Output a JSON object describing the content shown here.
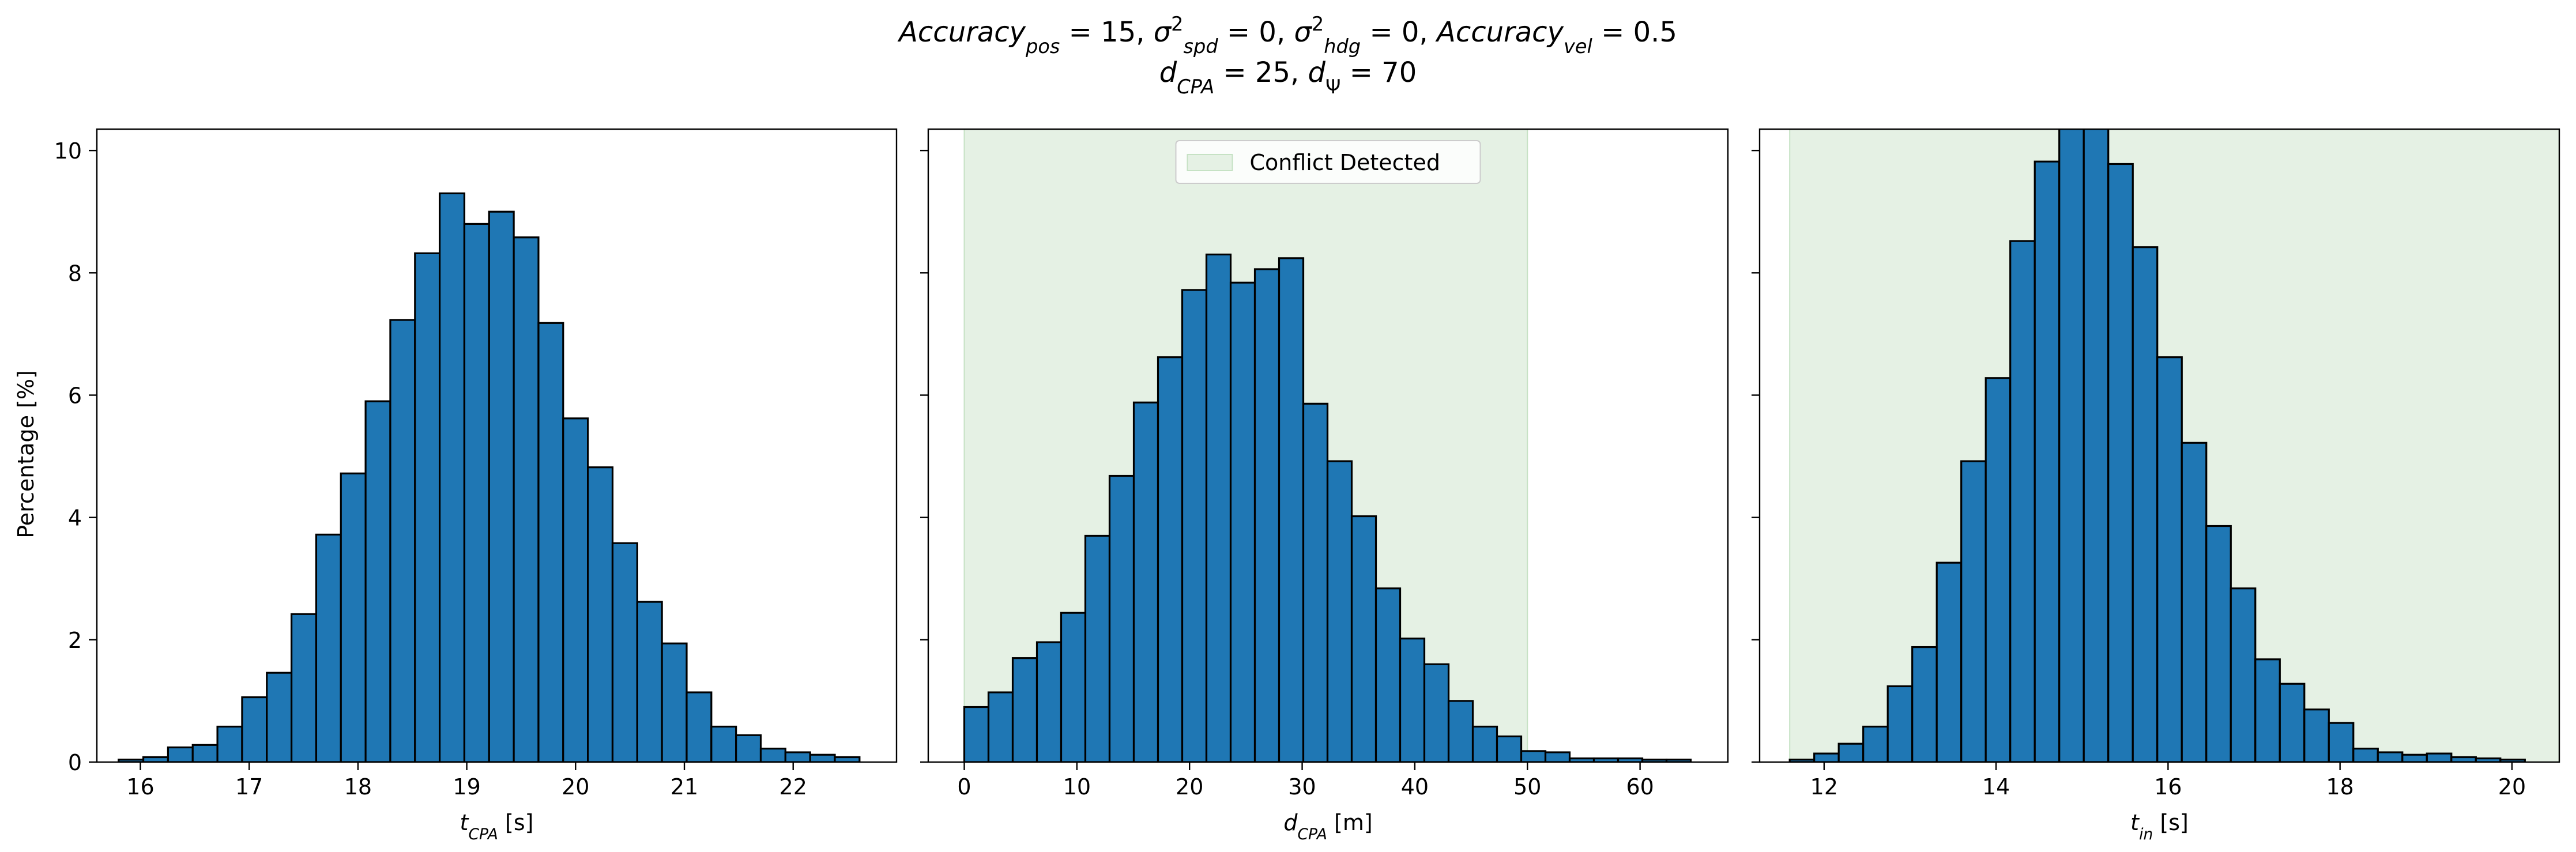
{
  "title": {
    "line1": [
      {
        "t": "Accuracy",
        "i": true
      },
      {
        "t": "pos",
        "i": true,
        "s": "sub"
      },
      {
        "t": " = 15, "
      },
      {
        "t": "σ",
        "i": true
      },
      {
        "t": "2",
        "s": "sup"
      },
      {
        "t": "spd",
        "i": true,
        "s": "sub"
      },
      {
        "t": " = 0, "
      },
      {
        "t": "σ",
        "i": true
      },
      {
        "t": "2",
        "s": "sup"
      },
      {
        "t": "hdg",
        "i": true,
        "s": "sub"
      },
      {
        "t": " = 0, "
      },
      {
        "t": "Accuracy",
        "i": true
      },
      {
        "t": "vel",
        "i": true,
        "s": "sub"
      },
      {
        "t": " = 0.5"
      }
    ],
    "line2": [
      {
        "t": "d",
        "i": true
      },
      {
        "t": "CPA",
        "i": true,
        "s": "sub"
      },
      {
        "t": " = 25, "
      },
      {
        "t": "d",
        "i": true
      },
      {
        "t": "Ψ",
        "s": "sub"
      },
      {
        "t": " = 70"
      }
    ]
  },
  "colors": {
    "bar_fill": "#1f77b4",
    "bar_edge": "#000000",
    "conflict_fill": "#e5f1e4",
    "conflict_edge": "#c6e2c4"
  },
  "chart_data": [
    {
      "type": "bar",
      "title": "",
      "xlabel": [
        {
          "t": "t",
          "i": true
        },
        {
          "t": "CPA",
          "i": true,
          "s": "sub"
        },
        {
          "t": " [s]"
        }
      ],
      "ylabel": "Percentage [%]",
      "xlim": [
        15.6,
        22.95
      ],
      "ylim": [
        0,
        10.35
      ],
      "xticks": [
        16,
        17,
        18,
        19,
        20,
        21,
        22
      ],
      "yticks": [
        0,
        2,
        4,
        6,
        8,
        10
      ],
      "bin_start": 15.8,
      "bin_width": 0.227,
      "values": [
        0.04,
        0.08,
        0.24,
        0.28,
        0.58,
        1.06,
        1.46,
        2.42,
        3.72,
        4.72,
        5.9,
        7.23,
        8.32,
        9.3,
        8.8,
        9.0,
        8.58,
        7.18,
        5.62,
        4.82,
        3.58,
        2.62,
        1.94,
        1.14,
        0.58,
        0.44,
        0.22,
        0.16,
        0.12,
        0.08
      ]
    },
    {
      "type": "bar",
      "title": "",
      "xlabel": [
        {
          "t": "d",
          "i": true
        },
        {
          "t": "CPA",
          "i": true,
          "s": "sub"
        },
        {
          "t": " [m]"
        }
      ],
      "ylabel": "",
      "xlim": [
        -3.2,
        67.8
      ],
      "ylim": [
        0,
        10.35
      ],
      "xticks": [
        0,
        10,
        20,
        30,
        40,
        50,
        60
      ],
      "yticks": [
        0,
        2,
        4,
        6,
        8,
        10
      ],
      "bin_start": 0,
      "bin_width": 2.15,
      "values": [
        0.9,
        1.14,
        1.7,
        1.96,
        2.44,
        3.7,
        4.68,
        5.88,
        6.62,
        7.72,
        8.3,
        7.84,
        8.06,
        8.24,
        5.86,
        4.92,
        4.02,
        2.84,
        2.02,
        1.6,
        1.0,
        0.58,
        0.42,
        0.18,
        0.16,
        0.06,
        0.06,
        0.06,
        0.04,
        0.04
      ],
      "conflict_region": [
        0,
        50
      ],
      "legend": {
        "label": "Conflict Detected",
        "position": "upper center"
      }
    },
    {
      "type": "bar",
      "title": "",
      "xlabel": [
        {
          "t": "t",
          "i": true
        },
        {
          "t": "in",
          "i": true,
          "s": "sub"
        },
        {
          "t": " [s]"
        }
      ],
      "ylabel": "",
      "xlim": [
        11.25,
        20.55
      ],
      "ylim": [
        0,
        10.35
      ],
      "xticks": [
        12,
        14,
        16,
        18,
        20
      ],
      "yticks": [
        0,
        2,
        4,
        6,
        8,
        10
      ],
      "bin_start": 11.6,
      "bin_width": 0.285,
      "values": [
        0.04,
        0.14,
        0.3,
        0.58,
        1.24,
        1.88,
        3.26,
        4.92,
        6.28,
        8.52,
        9.82,
        10.6,
        10.5,
        9.78,
        8.42,
        6.62,
        5.22,
        3.86,
        2.84,
        1.68,
        1.28,
        0.86,
        0.64,
        0.22,
        0.16,
        0.12,
        0.14,
        0.08,
        0.06,
        0.04
      ],
      "conflict_region": [
        11.6,
        20.55
      ]
    }
  ]
}
